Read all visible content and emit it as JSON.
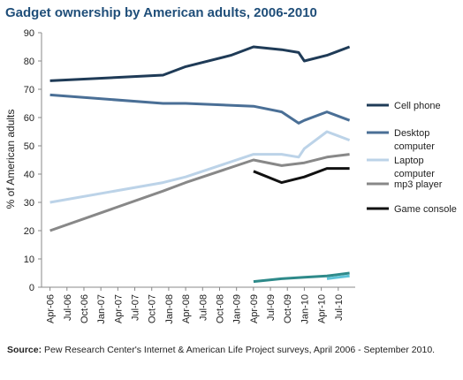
{
  "chart_data": {
    "type": "line",
    "title": "Gadget ownership by American adults, 2006-2010",
    "ylabel": "% of American adults",
    "ylim": [
      0,
      90
    ],
    "yticks": [
      0,
      10,
      20,
      30,
      40,
      50,
      60,
      70,
      80,
      90
    ],
    "xticks": [
      "Apr-06",
      "Jul-06",
      "Oct-06",
      "Jan-07",
      "Apr-07",
      "Jul-07",
      "Oct-07",
      "Jan-08",
      "Apr-08",
      "Jul-08",
      "Oct-08",
      "Jan-09",
      "Apr-09",
      "Jul-09",
      "Oct-09",
      "Jan-10",
      "Apr-10",
      "Jul-10"
    ],
    "legend_position": "right",
    "series": [
      {
        "name": "Cell phone",
        "color": "#1f3b57",
        "points": [
          [
            "Apr-06",
            73
          ],
          [
            "Dec-07",
            75
          ],
          [
            "Apr-08",
            78
          ],
          [
            "Dec-08",
            82
          ],
          [
            "Apr-09",
            85
          ],
          [
            "Sep-09",
            84
          ],
          [
            "Dec-09",
            83
          ],
          [
            "Jan-10",
            80
          ],
          [
            "May-10",
            82
          ],
          [
            "Sep-10",
            85
          ]
        ]
      },
      {
        "name": "Desktop computer",
        "color": "#4a6f96",
        "points": [
          [
            "Apr-06",
            68
          ],
          [
            "Dec-07",
            65
          ],
          [
            "Apr-08",
            65
          ],
          [
            "Apr-09",
            64
          ],
          [
            "Sep-09",
            62
          ],
          [
            "Dec-09",
            58
          ],
          [
            "Jan-10",
            59
          ],
          [
            "May-10",
            62
          ],
          [
            "Sep-10",
            59
          ]
        ]
      },
      {
        "name": "Laptop computer",
        "color": "#bcd3e8",
        "points": [
          [
            "Apr-06",
            30
          ],
          [
            "Dec-07",
            37
          ],
          [
            "Apr-08",
            39
          ],
          [
            "Apr-09",
            47
          ],
          [
            "Sep-09",
            47
          ],
          [
            "Dec-09",
            46
          ],
          [
            "Jan-10",
            49
          ],
          [
            "May-10",
            55
          ],
          [
            "Sep-10",
            52
          ]
        ]
      },
      {
        "name": "mp3 player",
        "color": "#888888",
        "points": [
          [
            "Apr-06",
            20
          ],
          [
            "Dec-07",
            34
          ],
          [
            "Apr-08",
            37
          ],
          [
            "Apr-09",
            45
          ],
          [
            "Sep-09",
            43
          ],
          [
            "Jan-10",
            44
          ],
          [
            "May-10",
            46
          ],
          [
            "Sep-10",
            47
          ]
        ]
      },
      {
        "name": "Game console",
        "color": "#111111",
        "points": [
          [
            "Apr-09",
            41
          ],
          [
            "Sep-09",
            37
          ],
          [
            "Jan-10",
            39
          ],
          [
            "May-10",
            42
          ],
          [
            "Sep-10",
            42
          ]
        ]
      },
      {
        "name": "",
        "color": "#2e8a8a",
        "points": [
          [
            "Apr-09",
            2
          ],
          [
            "Sep-09",
            3
          ],
          [
            "Jan-10",
            3.5
          ],
          [
            "May-10",
            4
          ],
          [
            "Sep-10",
            5
          ]
        ]
      },
      {
        "name": "",
        "color": "#5fc4d8",
        "points": [
          [
            "May-10",
            3
          ],
          [
            "Sep-10",
            4
          ]
        ]
      }
    ]
  },
  "source": {
    "label": "Source:",
    "text": "Pew Research Center's Internet & American Life Project surveys, April 2006 - September 2010."
  }
}
